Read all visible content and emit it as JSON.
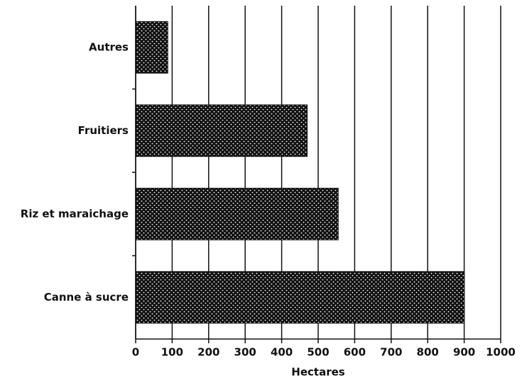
{
  "chart_data": {
    "type": "hbar",
    "categories": [
      "Autres",
      "Fruitiers",
      "Riz et maraichage",
      "Canne à sucre"
    ],
    "values": [
      88,
      470,
      555,
      900
    ],
    "color": "#111111",
    "xlabel": "Hectares",
    "xlim": [
      0,
      1000
    ],
    "xticks": [
      0,
      100,
      200,
      300,
      400,
      500,
      600,
      700,
      800,
      900,
      1000
    ],
    "grid": true
  }
}
